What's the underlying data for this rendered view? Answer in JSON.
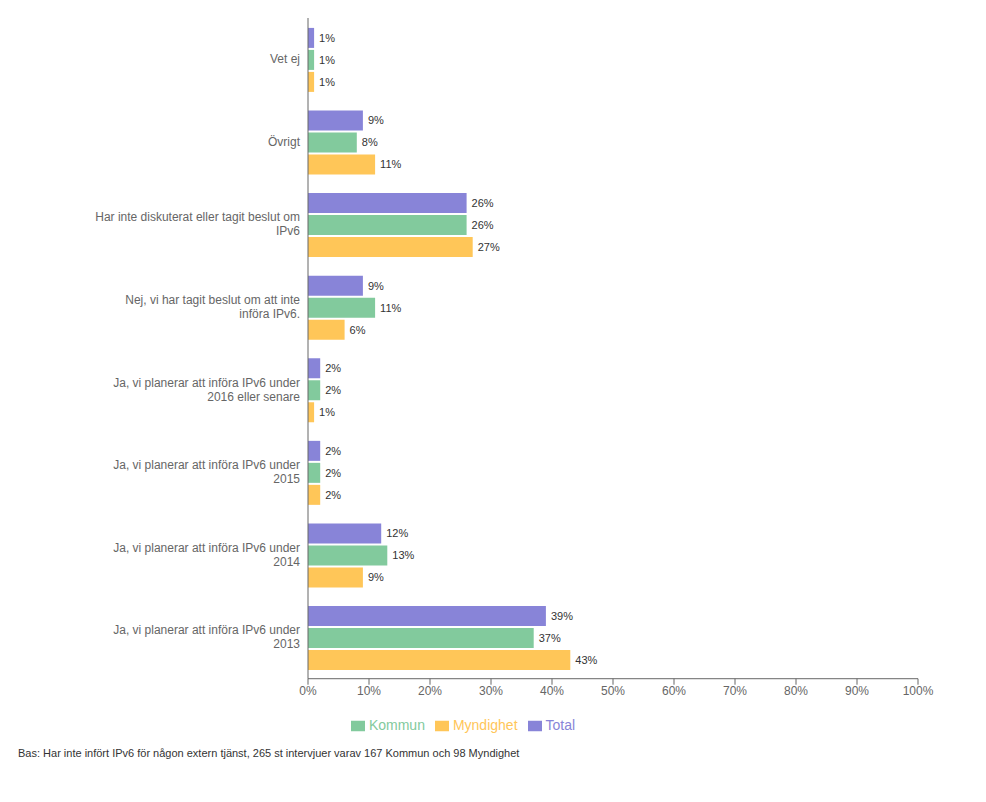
{
  "chart_data": {
    "type": "bar",
    "orientation": "horizontal",
    "categories": [
      "Ja, vi planerar att införa IPv6 under\n2013",
      "Ja, vi planerar att införa IPv6 under\n2014",
      "Ja, vi planerar att införa IPv6 under\n2015",
      "Ja, vi planerar att införa IPv6 under\n2016 eller senare",
      "Nej, vi har tagit beslut om att inte\ninföra IPv6.",
      "Har inte diskuterat eller tagit beslut om\nIPv6",
      "Övrigt",
      "Vet ej"
    ],
    "series": [
      {
        "name": "Total",
        "color": "#8884d8",
        "values": [
          39,
          12,
          2,
          2,
          9,
          26,
          9,
          1
        ],
        "value_labels": [
          "39%",
          "12%",
          "2%",
          "2%",
          "9%",
          "26%",
          "9%",
          "1%"
        ]
      },
      {
        "name": "Kommun",
        "color": "#82ca9d",
        "values": [
          37,
          13,
          2,
          2,
          11,
          26,
          8,
          1
        ],
        "value_labels": [
          "37%",
          "13%",
          "2%",
          "2%",
          "11%",
          "26%",
          "8%",
          "1%"
        ]
      },
      {
        "name": "Myndighet",
        "color": "#ffc658",
        "values": [
          43,
          9,
          2,
          1,
          6,
          27,
          11,
          1
        ],
        "value_labels": [
          "43%",
          "9%",
          "2%",
          "1%",
          "6%",
          "27%",
          "11%",
          "1%"
        ]
      }
    ],
    "xlim": [
      0,
      100
    ],
    "xticks": [
      {
        "value": 0,
        "label": "0%"
      },
      {
        "value": 10,
        "label": "10%"
      },
      {
        "value": 20,
        "label": "20%"
      },
      {
        "value": 30,
        "label": "30%"
      },
      {
        "value": 40,
        "label": "40%"
      },
      {
        "value": 50,
        "label": "50%"
      },
      {
        "value": 60,
        "label": "60%"
      },
      {
        "value": 70,
        "label": "70%"
      },
      {
        "value": 80,
        "label": "80%"
      },
      {
        "value": 90,
        "label": "90%"
      },
      {
        "value": 100,
        "label": "100%"
      }
    ],
    "data_labels": true,
    "legend": "bottom",
    "grid": false,
    "footnote": "Bas: Har inte infört IPv6 för någon extern tjänst, 265 st intervjuer varav 167 Kommun och 98 Myndighet"
  }
}
